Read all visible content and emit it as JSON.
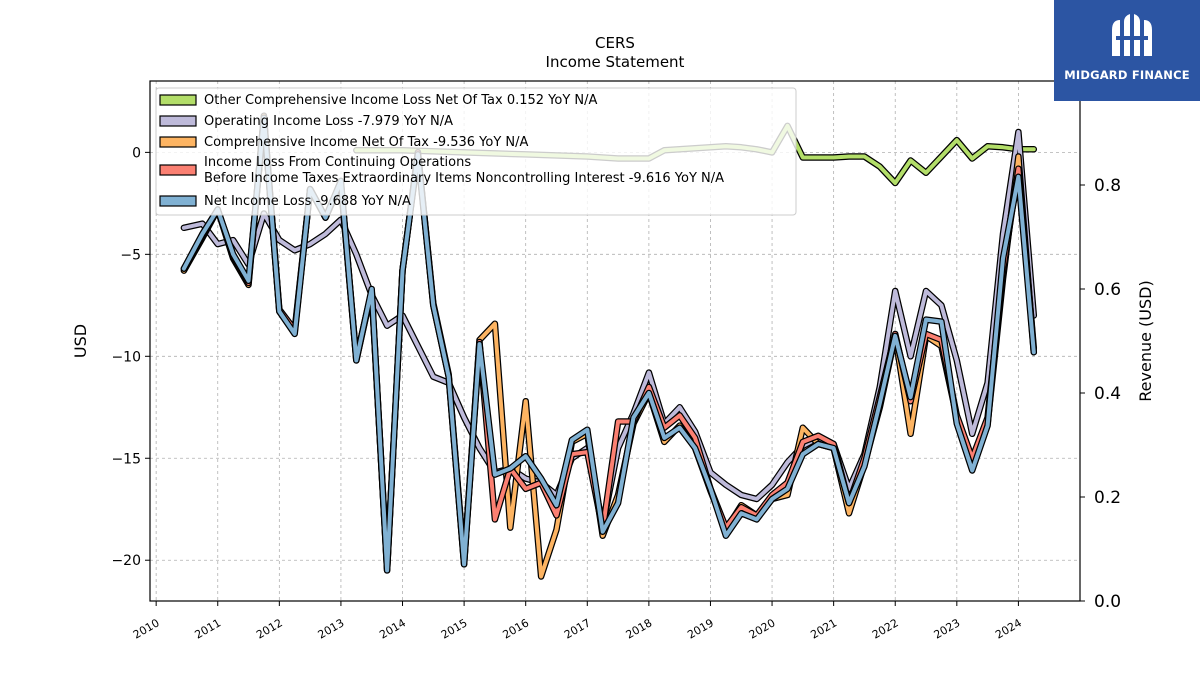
{
  "chart_data": {
    "type": "line",
    "title": "CERS",
    "subtitle": "Income Statement",
    "ylabel": "USD",
    "y2label": "Revenue (USD)",
    "ylim": [
      -22,
      3.5
    ],
    "y2lim": [
      0,
      1.0
    ],
    "yticks": [
      0,
      -5,
      -10,
      -15,
      -20
    ],
    "y2ticks": [
      0.0,
      0.2,
      0.4,
      0.6,
      0.8
    ],
    "xlim": [
      2009.9,
      2025.0
    ],
    "xticks": [
      2010,
      2011,
      2012,
      2013,
      2014,
      2015,
      2016,
      2017,
      2018,
      2019,
      2020,
      2021,
      2022,
      2023,
      2024
    ],
    "grid": true,
    "legend_position": "top-left",
    "series": [
      {
        "name": "Other Comprehensive Income Loss Net Of Tax",
        "legend": "Other Comprehensive Income Loss Net Of Tax  0.152 YoY N/A",
        "color": "#b3de69",
        "x": [
          2013.25,
          2014.0,
          2015.0,
          2016.0,
          2017.0,
          2017.25,
          2017.5,
          2017.75,
          2018.0,
          2018.25,
          2018.5,
          2018.75,
          2019.0,
          2019.25,
          2019.5,
          2019.75,
          2020.0,
          2020.25,
          2020.5,
          2020.75,
          2021.0,
          2021.25,
          2021.5,
          2021.75,
          2022.0,
          2022.25,
          2022.5,
          2022.75,
          2023.0,
          2023.25,
          2023.5,
          2023.75,
          2024.0,
          2024.25
        ],
        "values": [
          0.1,
          0.1,
          0.0,
          -0.1,
          -0.2,
          -0.25,
          -0.3,
          -0.3,
          -0.3,
          0.1,
          0.15,
          0.2,
          0.25,
          0.3,
          0.25,
          0.15,
          0.0,
          1.3,
          -0.25,
          -0.25,
          -0.25,
          -0.2,
          -0.2,
          -0.7,
          -1.5,
          -0.4,
          -1.0,
          -0.2,
          0.6,
          -0.3,
          0.3,
          0.25,
          0.15,
          0.15
        ]
      },
      {
        "name": "Operating Income Loss",
        "legend": "Operating Income Loss  -7.979 YoY N/A",
        "color": "#bebada",
        "x": [
          2010.45,
          2010.75,
          2011.0,
          2011.25,
          2011.5,
          2011.75,
          2012.0,
          2012.25,
          2012.5,
          2012.75,
          2013.0,
          2013.25,
          2013.5,
          2013.75,
          2014.0,
          2014.25,
          2014.5,
          2014.75,
          2015.0,
          2015.25,
          2015.5,
          2015.75,
          2016.0,
          2016.25,
          2016.5,
          2016.75,
          2017.0,
          2017.25,
          2017.5,
          2017.75,
          2018.0,
          2018.25,
          2018.5,
          2018.75,
          2019.0,
          2019.25,
          2019.5,
          2019.75,
          2020.0,
          2020.25,
          2020.5,
          2020.75,
          2021.0,
          2021.25,
          2021.5,
          2021.75,
          2022.0,
          2022.25,
          2022.5,
          2022.75,
          2023.0,
          2023.25,
          2023.5,
          2023.75,
          2024.0,
          2024.25
        ],
        "values": [
          -3.7,
          -3.5,
          -4.5,
          -4.3,
          -5.5,
          -3.0,
          -4.3,
          -4.8,
          -4.5,
          -4.0,
          -3.3,
          -5.0,
          -7.0,
          -8.5,
          -8.0,
          -9.5,
          -11.0,
          -11.3,
          -13.0,
          -14.5,
          -15.7,
          -15.5,
          -16.0,
          -16.2,
          -16.8,
          -15.0,
          -14.5,
          -18.3,
          -14.5,
          -12.8,
          -10.8,
          -13.3,
          -12.5,
          -13.7,
          -15.7,
          -16.3,
          -16.8,
          -17.0,
          -16.3,
          -15.2,
          -14.4,
          -14.0,
          -14.3,
          -16.5,
          -14.8,
          -11.5,
          -6.8,
          -10.0,
          -6.8,
          -7.5,
          -10.2,
          -13.8,
          -11.3,
          -4.0,
          1.0,
          -8.0
        ]
      },
      {
        "name": "Comprehensive Income Net Of Tax",
        "legend": "Comprehensive Income Net Of Tax  -9.536 YoY N/A",
        "color": "#fdb462",
        "x": [
          2010.45,
          2010.75,
          2011.0,
          2011.25,
          2011.5,
          2011.75,
          2012.0,
          2012.25,
          2012.5,
          2012.75,
          2013.0,
          2013.25,
          2013.5,
          2013.75,
          2014.0,
          2014.25,
          2014.5,
          2014.75,
          2015.0,
          2015.25,
          2015.5,
          2015.75,
          2016.0,
          2016.25,
          2016.5,
          2016.75,
          2017.0,
          2017.25,
          2017.5,
          2017.75,
          2018.0,
          2018.25,
          2018.5,
          2018.75,
          2019.0,
          2019.25,
          2019.5,
          2019.75,
          2020.0,
          2020.25,
          2020.5,
          2020.75,
          2021.0,
          2021.25,
          2021.5,
          2021.75,
          2022.0,
          2022.25,
          2022.5,
          2022.75,
          2023.0,
          2023.25,
          2023.5,
          2023.75,
          2024.0,
          2024.25
        ],
        "values": [
          -5.8,
          -4.2,
          -2.8,
          -5.2,
          -6.5,
          1.8,
          -7.8,
          -8.8,
          -1.8,
          -3.2,
          -1.5,
          -10.2,
          -6.8,
          -20.5,
          -5.8,
          0.0,
          -7.5,
          -11.0,
          -20.2,
          -9.2,
          -8.4,
          -18.4,
          -12.2,
          -20.8,
          -18.5,
          -14.2,
          -13.8,
          -18.8,
          -16.8,
          -13.3,
          -11.8,
          -14.2,
          -13.4,
          -14.5,
          -16.6,
          -18.5,
          -17.3,
          -17.8,
          -17.0,
          -16.8,
          -13.5,
          -14.3,
          -14.5,
          -17.7,
          -15.3,
          -12.5,
          -9.0,
          -13.8,
          -9.0,
          -9.5,
          -13.0,
          -15.3,
          -13.3,
          -6.2,
          -0.2,
          -9.8
        ]
      },
      {
        "name": "Income Loss From Continuing Operations Before Income Taxes Extraordinary Items Noncontrolling Interest",
        "legend": "Income Loss From Continuing Operations\nBefore Income Taxes Extraordinary Items Noncontrolling Interest  -9.616 YoY N/A",
        "color": "#fb8072",
        "x": [
          2010.45,
          2010.75,
          2011.0,
          2011.25,
          2011.5,
          2011.75,
          2012.0,
          2012.25,
          2012.5,
          2012.75,
          2013.0,
          2013.25,
          2013.5,
          2013.75,
          2014.0,
          2014.25,
          2014.5,
          2014.75,
          2015.0,
          2015.25,
          2015.5,
          2015.75,
          2016.0,
          2016.25,
          2016.5,
          2016.75,
          2017.0,
          2017.25,
          2017.5,
          2017.75,
          2018.0,
          2018.25,
          2018.5,
          2018.75,
          2019.0,
          2019.25,
          2019.5,
          2019.75,
          2020.0,
          2020.25,
          2020.5,
          2020.75,
          2021.0,
          2021.25,
          2021.5,
          2021.75,
          2022.0,
          2022.25,
          2022.5,
          2022.75,
          2023.0,
          2023.25,
          2023.5,
          2023.75,
          2024.0,
          2024.25
        ],
        "values": [
          -5.7,
          -4.1,
          -2.8,
          -5.1,
          -6.4,
          1.7,
          -7.7,
          -8.7,
          -1.8,
          -3.2,
          -1.5,
          -10.1,
          -6.8,
          -20.4,
          -5.8,
          0.0,
          -7.4,
          -10.9,
          -20.1,
          -9.3,
          -18.0,
          -15.5,
          -16.5,
          -16.2,
          -17.8,
          -14.8,
          -14.7,
          -18.5,
          -13.2,
          -13.2,
          -11.5,
          -13.5,
          -12.9,
          -14.0,
          -16.5,
          -18.4,
          -17.4,
          -17.8,
          -16.8,
          -16.2,
          -14.2,
          -13.9,
          -14.3,
          -17.2,
          -15.0,
          -12.0,
          -8.9,
          -12.2,
          -8.9,
          -9.2,
          -12.9,
          -15.0,
          -13.0,
          -5.8,
          -0.8,
          -9.6
        ]
      },
      {
        "name": "Net Income Loss",
        "legend": "Net Income Loss  -9.688 YoY N/A",
        "color": "#80b1d3",
        "x": [
          2010.45,
          2010.75,
          2011.0,
          2011.25,
          2011.5,
          2011.75,
          2012.0,
          2012.25,
          2012.5,
          2012.75,
          2013.0,
          2013.25,
          2013.5,
          2013.75,
          2014.0,
          2014.25,
          2014.5,
          2014.75,
          2015.0,
          2015.25,
          2015.5,
          2015.75,
          2016.0,
          2016.25,
          2016.5,
          2016.75,
          2017.0,
          2017.25,
          2017.5,
          2017.75,
          2018.0,
          2018.25,
          2018.5,
          2018.75,
          2019.0,
          2019.25,
          2019.5,
          2019.75,
          2020.0,
          2020.25,
          2020.5,
          2020.75,
          2021.0,
          2021.25,
          2021.5,
          2021.75,
          2022.0,
          2022.25,
          2022.5,
          2022.75,
          2023.0,
          2023.25,
          2023.5,
          2023.75,
          2024.0,
          2024.25
        ],
        "values": [
          -5.7,
          -4.0,
          -2.8,
          -5.0,
          -6.3,
          1.7,
          -7.8,
          -8.9,
          -1.8,
          -3.2,
          -1.4,
          -10.2,
          -6.7,
          -20.5,
          -5.8,
          -0.1,
          -7.5,
          -11.0,
          -20.2,
          -9.4,
          -15.8,
          -15.5,
          -14.9,
          -16.0,
          -17.3,
          -14.1,
          -13.6,
          -18.6,
          -17.2,
          -13.0,
          -11.8,
          -14.0,
          -13.5,
          -14.5,
          -16.5,
          -18.8,
          -17.7,
          -18.0,
          -17.0,
          -16.5,
          -14.8,
          -14.3,
          -14.5,
          -17.2,
          -15.4,
          -12.3,
          -9.0,
          -12.0,
          -8.2,
          -8.3,
          -13.3,
          -15.6,
          -13.4,
          -5.2,
          -1.2,
          -9.8
        ]
      }
    ]
  },
  "logo": {
    "text": "MIDGARD FINANCE",
    "background": "#2c55a3",
    "icon": "midgard-logo-mark"
  }
}
